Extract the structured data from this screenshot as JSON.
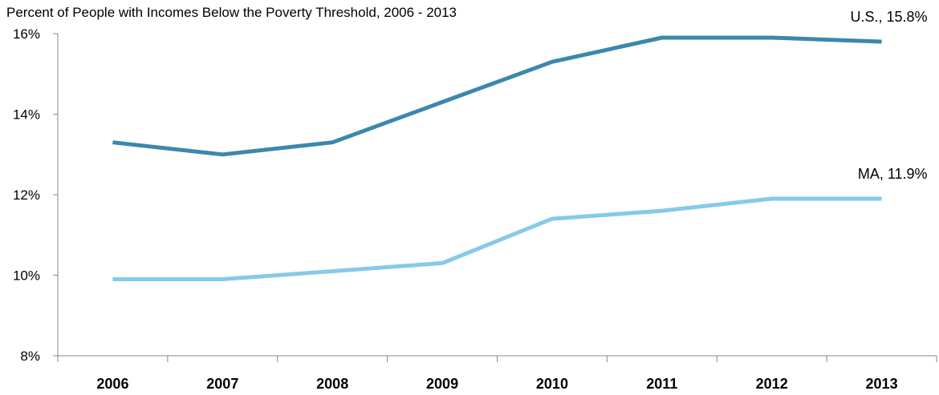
{
  "chart_data": {
    "type": "line",
    "title": "Percent of People with Incomes Below the Poverty Threshold, 2006 - 2013",
    "categories": [
      "2006",
      "2007",
      "2008",
      "2009",
      "2010",
      "2011",
      "2012",
      "2013"
    ],
    "series": [
      {
        "name": "U.S.",
        "end_label": "U.S., 15.8%",
        "color": "#3c87ad",
        "values": [
          13.3,
          13.0,
          13.3,
          14.3,
          15.3,
          15.9,
          15.9,
          15.8
        ]
      },
      {
        "name": "MA",
        "end_label": "MA, 11.9%",
        "color": "#86cae8",
        "values": [
          9.9,
          9.9,
          10.1,
          10.3,
          11.4,
          11.6,
          11.9,
          11.9
        ]
      }
    ],
    "yticks": [
      {
        "value": 8,
        "label": "8%"
      },
      {
        "value": 10,
        "label": "10%"
      },
      {
        "value": 12,
        "label": "12%"
      },
      {
        "value": 14,
        "label": "14%"
      },
      {
        "value": 16,
        "label": "16%"
      }
    ],
    "ylim": [
      8,
      16
    ],
    "xlabel": "",
    "ylabel": "",
    "grid": false,
    "legend": "none"
  }
}
